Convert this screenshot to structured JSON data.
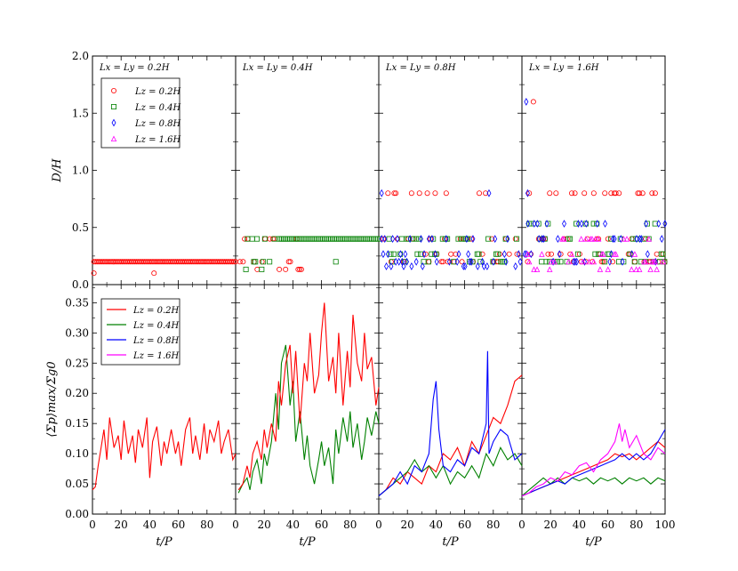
{
  "chart_data": {
    "type": "scatter+line",
    "xlabel": "t/P",
    "top_ylabel": "D/H",
    "bottom_ylabel": "⟨Σp⟩max/Σg0",
    "xlim": [
      0,
      100
    ],
    "top_ylim": [
      0,
      2.0
    ],
    "bottom_ylim": [
      0,
      0.38
    ],
    "x_ticks": [
      "0",
      "20",
      "40",
      "60",
      "80"
    ],
    "x_ticks_last": [
      "0",
      "20",
      "40",
      "60",
      "80",
      "100"
    ],
    "top_yticks": [
      "0.0",
      "0.5",
      "1.0",
      "1.5",
      "2.0"
    ],
    "bottom_yticks": [
      "0.00",
      "0.05",
      "0.10",
      "0.15",
      "0.20",
      "0.25",
      "0.30",
      "0.35"
    ],
    "panel_titles": [
      "Lx = Ly = 0.2H",
      "Lx = Ly = 0.4H",
      "Lx = Ly = 0.8H",
      "Lx = Ly = 1.6H"
    ],
    "legend_top": [
      {
        "label": "Lz = 0.2H",
        "marker": "circle",
        "color": "#ff0000"
      },
      {
        "label": "Lz = 0.4H",
        "marker": "square",
        "color": "#008000"
      },
      {
        "label": "Lz = 0.8H",
        "marker": "diamond",
        "color": "#0000ff"
      },
      {
        "label": "Lz = 1.6H",
        "marker": "triangle",
        "color": "#ff00ff"
      }
    ],
    "legend_bottom": [
      {
        "label": "Lz = 0.2H",
        "color": "#ff0000"
      },
      {
        "label": "Lz = 0.4H",
        "color": "#008000"
      },
      {
        "label": "Lz = 0.8H",
        "color": "#0000ff"
      },
      {
        "label": "Lz = 1.6H",
        "color": "#ff00ff"
      }
    ],
    "top_panels": [
      {
        "series": [
          {
            "name": "Lz = 0.2H",
            "color": "#ff0000",
            "marker": "circle",
            "values": [
              0.2
            ],
            "x_range": [
              1,
              100
            ],
            "extra": [
              [
                1,
                0.1
              ],
              [
                43,
                0.1
              ]
            ]
          }
        ]
      },
      {
        "series": [
          {
            "name": "Lz = 0.2H",
            "color": "#ff0000",
            "marker": "circle",
            "values": [
              0.4,
              0.2,
              0.133
            ],
            "x_range": [
              3,
              48
            ],
            "extra": []
          },
          {
            "name": "Lz = 0.4H",
            "color": "#008000",
            "marker": "square",
            "values": [
              0.4,
              0.2,
              0.133
            ],
            "x_range": [
              5,
              100
            ],
            "extra": [
              [
                70,
                0.2
              ]
            ]
          }
        ]
      },
      {
        "series": [
          {
            "name": "Lz = 0.2H",
            "color": "#ff0000",
            "marker": "circle",
            "values": [
              0.8,
              0.4,
              0.267,
              0.2
            ],
            "x_range": [
              2,
              100
            ],
            "extra": []
          },
          {
            "name": "Lz = 0.4H",
            "color": "#008000",
            "marker": "square",
            "values": [
              0.4,
              0.267,
              0.2
            ],
            "x_range": [
              5,
              100
            ],
            "extra": []
          },
          {
            "name": "Lz = 0.8H",
            "color": "#0000ff",
            "marker": "diamond",
            "values": [
              0.4,
              0.267,
              0.2,
              0.16
            ],
            "x_range": [
              2,
              100
            ],
            "extra": [
              [
                77,
                0.8
              ],
              [
                2,
                0.8
              ]
            ]
          }
        ]
      },
      {
        "series": [
          {
            "name": "Lz = 0.2H",
            "color": "#ff0000",
            "marker": "circle",
            "values": [
              0.8,
              0.4,
              0.267,
              0.2
            ],
            "x_range": [
              4,
              100
            ],
            "extra": [
              [
                8,
                1.6
              ]
            ]
          },
          {
            "name": "Lz = 0.4H",
            "color": "#008000",
            "marker": "square",
            "values": [
              0.533,
              0.4,
              0.267,
              0.2
            ],
            "x_range": [
              5,
              100
            ],
            "extra": []
          },
          {
            "name": "Lz = 0.8H",
            "color": "#0000ff",
            "marker": "diamond",
            "values": [
              0.533,
              0.4,
              0.267,
              0.2
            ],
            "x_range": [
              2,
              100
            ],
            "extra": [
              [
                3,
                1.6
              ],
              [
                4,
                0.8
              ]
            ]
          },
          {
            "name": "Lz = 1.6H",
            "color": "#ff00ff",
            "marker": "triangle",
            "values": [
              0.4,
              0.267,
              0.2,
              0.133
            ],
            "x_range": [
              4,
              100
            ],
            "extra": []
          }
        ]
      }
    ],
    "bottom_panels": [
      {
        "series": [
          {
            "name": "Lz = 0.2H",
            "color": "#ff0000",
            "x": [
              0,
              2,
              4,
              6,
              8,
              10,
              12,
              15,
              18,
              20,
              22,
              25,
              28,
              30,
              32,
              35,
              38,
              40,
              42,
              45,
              48,
              50,
              52,
              55,
              58,
              60,
              62,
              65,
              68,
              70,
              72,
              75,
              78,
              80,
              82,
              85,
              88,
              90,
              92,
              95,
              98,
              100
            ],
            "values": [
              0.04,
              0.045,
              0.08,
              0.11,
              0.14,
              0.09,
              0.16,
              0.11,
              0.13,
              0.09,
              0.155,
              0.1,
              0.13,
              0.085,
              0.14,
              0.11,
              0.16,
              0.06,
              0.12,
              0.145,
              0.08,
              0.12,
              0.1,
              0.14,
              0.1,
              0.12,
              0.08,
              0.14,
              0.16,
              0.1,
              0.13,
              0.09,
              0.15,
              0.1,
              0.14,
              0.12,
              0.155,
              0.1,
              0.12,
              0.14,
              0.09,
              0.1
            ]
          }
        ]
      },
      {
        "series": [
          {
            "name": "Lz = 0.4H",
            "color": "#008000",
            "x": [
              2,
              5,
              8,
              10,
              12,
              15,
              18,
              20,
              22,
              25,
              28,
              30,
              32,
              35,
              38,
              40,
              42,
              45,
              48,
              50,
              52,
              55,
              58,
              60,
              62,
              65,
              68,
              70,
              72,
              75,
              78,
              80,
              82,
              85,
              88,
              90,
              92,
              95,
              98,
              100
            ],
            "values": [
              0.035,
              0.05,
              0.06,
              0.04,
              0.07,
              0.09,
              0.05,
              0.1,
              0.08,
              0.12,
              0.2,
              0.14,
              0.25,
              0.28,
              0.18,
              0.22,
              0.12,
              0.17,
              0.09,
              0.13,
              0.08,
              0.05,
              0.09,
              0.12,
              0.08,
              0.11,
              0.05,
              0.14,
              0.1,
              0.16,
              0.12,
              0.17,
              0.11,
              0.15,
              0.09,
              0.12,
              0.16,
              0.13,
              0.17,
              0.15
            ]
          },
          {
            "name": "Lz = 0.2H",
            "color": "#ff0000",
            "x": [
              2,
              5,
              8,
              10,
              12,
              15,
              18,
              20,
              22,
              25,
              28,
              30,
              32,
              35,
              38,
              40,
              42,
              45,
              48,
              50,
              52,
              55,
              58,
              60,
              62,
              65,
              68,
              70,
              72,
              75,
              78,
              80,
              82,
              85,
              88,
              90,
              92,
              95,
              98,
              100
            ],
            "values": [
              0.04,
              0.05,
              0.08,
              0.06,
              0.1,
              0.12,
              0.09,
              0.14,
              0.11,
              0.15,
              0.12,
              0.22,
              0.18,
              0.25,
              0.28,
              0.2,
              0.27,
              0.15,
              0.25,
              0.22,
              0.3,
              0.2,
              0.23,
              0.3,
              0.35,
              0.22,
              0.26,
              0.2,
              0.3,
              0.18,
              0.27,
              0.21,
              0.33,
              0.25,
              0.22,
              0.3,
              0.24,
              0.26,
              0.18,
              0.21
            ]
          }
        ]
      },
      {
        "series": [
          {
            "name": "Lz = 0.2H",
            "color": "#ff0000",
            "x": [
              0,
              5,
              10,
              15,
              20,
              25,
              30,
              35,
              40,
              45,
              50,
              55,
              60,
              65,
              70,
              75,
              80,
              85,
              90,
              95,
              100
            ],
            "values": [
              0.03,
              0.04,
              0.06,
              0.05,
              0.07,
              0.06,
              0.05,
              0.08,
              0.07,
              0.1,
              0.09,
              0.11,
              0.08,
              0.12,
              0.1,
              0.13,
              0.16,
              0.15,
              0.18,
              0.22,
              0.23
            ]
          },
          {
            "name": "Lz = 0.4H",
            "color": "#008000",
            "x": [
              0,
              5,
              10,
              15,
              20,
              25,
              30,
              35,
              40,
              45,
              50,
              55,
              60,
              65,
              70,
              75,
              80,
              85,
              90,
              95,
              100
            ],
            "values": [
              0.03,
              0.04,
              0.05,
              0.06,
              0.07,
              0.09,
              0.07,
              0.08,
              0.06,
              0.08,
              0.05,
              0.07,
              0.06,
              0.08,
              0.06,
              0.1,
              0.08,
              0.11,
              0.09,
              0.1,
              0.08
            ]
          },
          {
            "name": "Lz = 0.8H",
            "color": "#0000ff",
            "x": [
              0,
              5,
              10,
              15,
              20,
              25,
              30,
              35,
              38,
              40,
              42,
              45,
              50,
              55,
              60,
              65,
              70,
              75,
              76,
              77,
              80,
              85,
              90,
              95,
              100
            ],
            "values": [
              0.03,
              0.04,
              0.05,
              0.07,
              0.05,
              0.08,
              0.07,
              0.1,
              0.19,
              0.22,
              0.14,
              0.08,
              0.07,
              0.09,
              0.08,
              0.11,
              0.1,
              0.15,
              0.27,
              0.1,
              0.12,
              0.14,
              0.13,
              0.09,
              0.1
            ]
          }
        ]
      },
      {
        "series": [
          {
            "name": "Lz = 0.2H",
            "color": "#ff0000",
            "x": [
              0,
              5,
              10,
              15,
              20,
              25,
              30,
              35,
              40,
              45,
              50,
              55,
              60,
              65,
              70,
              75,
              80,
              85,
              90,
              95,
              100
            ],
            "values": [
              0.03,
              0.035,
              0.04,
              0.045,
              0.05,
              0.055,
              0.06,
              0.065,
              0.07,
              0.075,
              0.08,
              0.085,
              0.09,
              0.1,
              0.095,
              0.1,
              0.09,
              0.1,
              0.11,
              0.12,
              0.11
            ]
          },
          {
            "name": "Lz = 0.4H",
            "color": "#008000",
            "x": [
              0,
              5,
              10,
              15,
              20,
              25,
              30,
              35,
              40,
              45,
              50,
              55,
              60,
              65,
              70,
              75,
              80,
              85,
              90,
              95,
              100
            ],
            "values": [
              0.03,
              0.04,
              0.05,
              0.06,
              0.05,
              0.06,
              0.05,
              0.06,
              0.055,
              0.06,
              0.05,
              0.06,
              0.055,
              0.06,
              0.05,
              0.06,
              0.055,
              0.06,
              0.05,
              0.06,
              0.055
            ]
          },
          {
            "name": "Lz = 0.8H",
            "color": "#0000ff",
            "x": [
              0,
              5,
              10,
              15,
              20,
              25,
              30,
              35,
              40,
              45,
              50,
              55,
              60,
              65,
              70,
              75,
              80,
              85,
              90,
              95,
              100
            ],
            "values": [
              0.03,
              0.035,
              0.04,
              0.045,
              0.05,
              0.055,
              0.05,
              0.06,
              0.065,
              0.07,
              0.075,
              0.08,
              0.085,
              0.09,
              0.1,
              0.09,
              0.1,
              0.09,
              0.1,
              0.12,
              0.14
            ]
          },
          {
            "name": "Lz = 1.6H",
            "color": "#ff00ff",
            "x": [
              0,
              5,
              10,
              15,
              20,
              25,
              30,
              35,
              40,
              45,
              50,
              55,
              60,
              65,
              68,
              70,
              72,
              75,
              80,
              85,
              90,
              95,
              100
            ],
            "values": [
              0.03,
              0.035,
              0.045,
              0.05,
              0.06,
              0.055,
              0.07,
              0.065,
              0.08,
              0.085,
              0.07,
              0.09,
              0.1,
              0.12,
              0.15,
              0.12,
              0.14,
              0.11,
              0.13,
              0.1,
              0.09,
              0.11,
              0.1
            ]
          }
        ]
      }
    ]
  }
}
